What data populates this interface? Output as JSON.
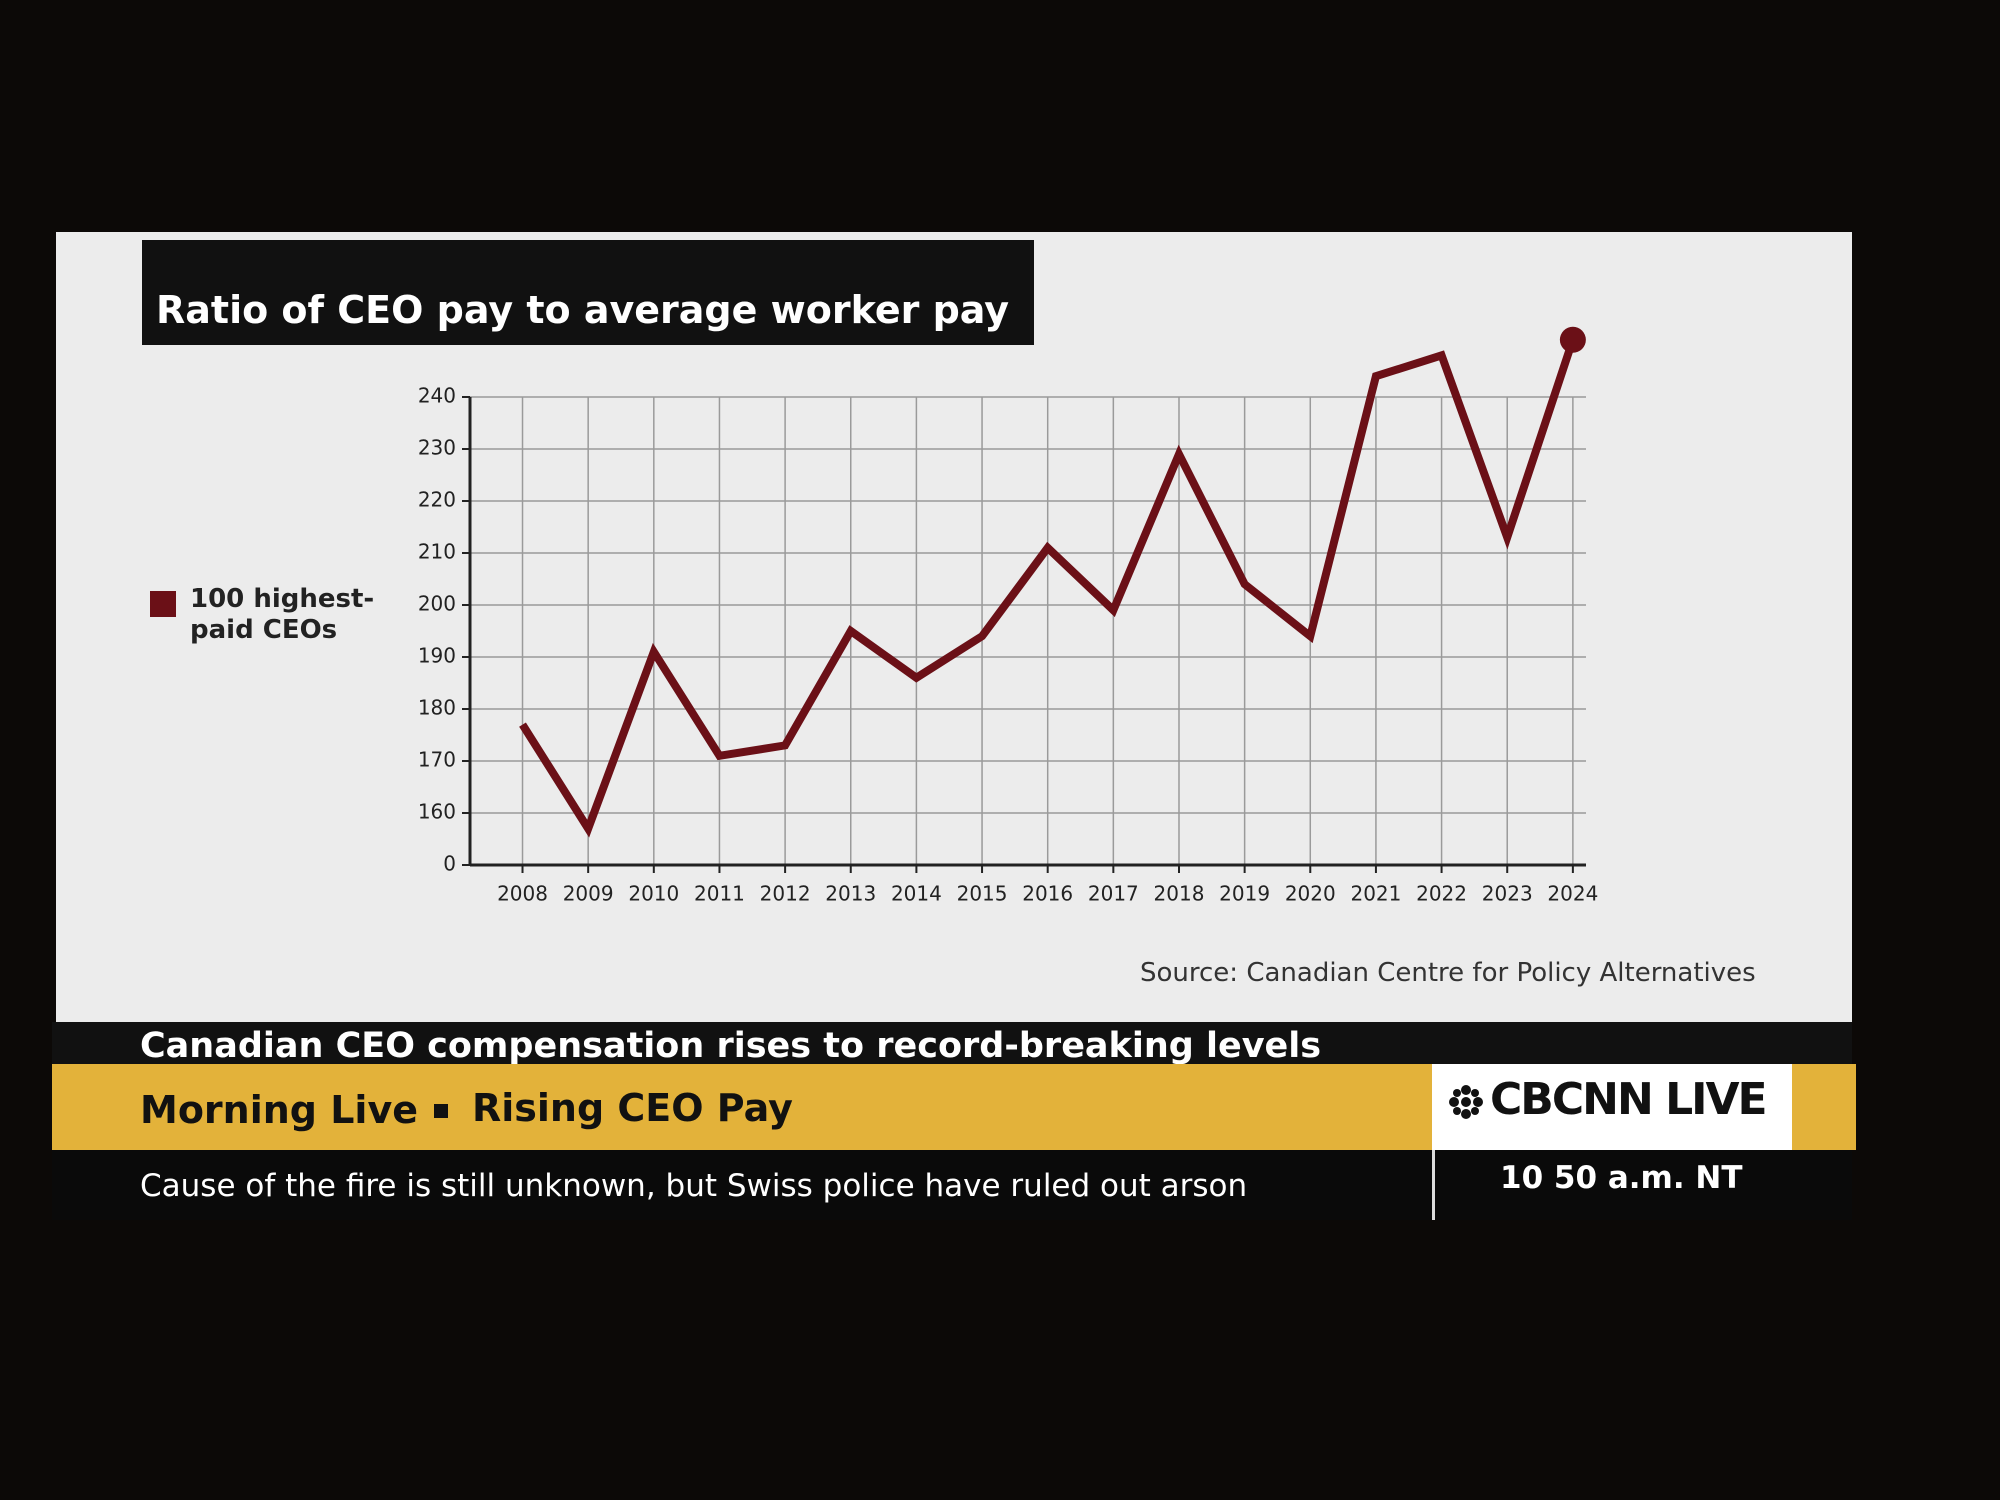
{
  "chart_data": {
    "type": "line",
    "title": "Ratio of CEO pay to average worker pay",
    "categories": [
      "2008",
      "2009",
      "2010",
      "2011",
      "2012",
      "2013",
      "2014",
      "2015",
      "2016",
      "2017",
      "2018",
      "2019",
      "2020",
      "2021",
      "2022",
      "2023",
      "2024"
    ],
    "series": [
      {
        "name": "100 highest-paid CEOs",
        "color": "#6b1017",
        "values": [
          177,
          157,
          191,
          171,
          173,
          195,
          186,
          194,
          211,
          199,
          229,
          204,
          194,
          244,
          248,
          213,
          251
        ]
      }
    ],
    "ylim": [
      0,
      240
    ],
    "yticks": [
      0,
      160,
      170,
      180,
      190,
      200,
      210,
      220,
      230,
      240
    ],
    "broken_axis": true,
    "grid": true,
    "legend": "left",
    "source": "Source: Canadian Centre for Policy Alternatives"
  },
  "broadcast": {
    "headline": "Canadian CEO compensation rises to record-breaking levels",
    "show": "Morning Live",
    "segment": "Rising CEO Pay",
    "network": "CBCNN LIVE",
    "ticker": "Cause of the fire is still unknown, but Swiss police have ruled out arson",
    "time": "10 50 a.m. NT"
  }
}
